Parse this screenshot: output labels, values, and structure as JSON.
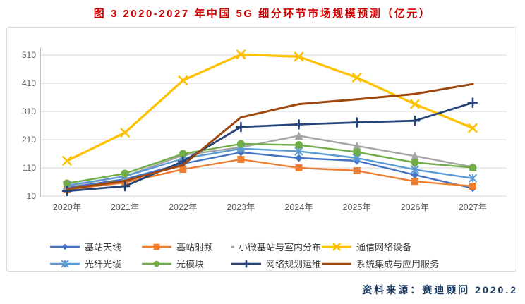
{
  "title": "图 3 2020-2027 年中国 5G 细分环节市场规模预测（亿元）",
  "source": "资料来源：赛迪顾问  2020.2",
  "colors": {
    "title": "#cc0000",
    "source_text": "#17375e",
    "axis_text": "#595959",
    "gridline": "#d9d9d9"
  },
  "chart_data": {
    "type": "line",
    "title": "图 3 2020-2027 年中国 5G 细分环节市场规模预测（亿元）",
    "categories": [
      "2020年",
      "2021年",
      "2022年",
      "2023年",
      "2024年",
      "2025年",
      "2026年",
      "2027年"
    ],
    "yticks": [
      10,
      110,
      210,
      310,
      410,
      510
    ],
    "ylim": [
      10,
      510
    ],
    "grid": true,
    "legend_position": "bottom",
    "series": [
      {
        "name": "基站天线",
        "marker": "diamond",
        "color": "#4472C4",
        "values": [
          40,
          70,
          125,
          165,
          145,
          135,
          85,
          38
        ]
      },
      {
        "name": "基站射频",
        "marker": "square",
        "color": "#ED7D31",
        "values": [
          33,
          58,
          105,
          140,
          110,
          100,
          62,
          45
        ]
      },
      {
        "name": "小微基站与室内分布",
        "marker": "triangle",
        "color": "#A5A5A5",
        "values": [
          45,
          80,
          155,
          183,
          224,
          188,
          152,
          113
        ]
      },
      {
        "name": "通信网络设备",
        "marker": "x",
        "color": "#FFC000",
        "values": [
          135,
          235,
          420,
          512,
          504,
          430,
          336,
          251
        ]
      },
      {
        "name": "光纤光缆",
        "marker": "asterisk",
        "color": "#5B9BD5",
        "values": [
          48,
          80,
          143,
          178,
          169,
          145,
          104,
          73
        ]
      },
      {
        "name": "光模块",
        "marker": "circle",
        "color": "#70AD47",
        "values": [
          55,
          90,
          160,
          195,
          191,
          166,
          129,
          111
        ]
      },
      {
        "name": "网络规划运维",
        "marker": "plus",
        "color": "#264478",
        "values": [
          28,
          45,
          133,
          255,
          264,
          271,
          277,
          341
        ]
      },
      {
        "name": "系统集成与应用服务",
        "marker": "none",
        "color": "#9E480E",
        "values": [
          35,
          64,
          120,
          289,
          336,
          353,
          372,
          407
        ]
      }
    ]
  }
}
